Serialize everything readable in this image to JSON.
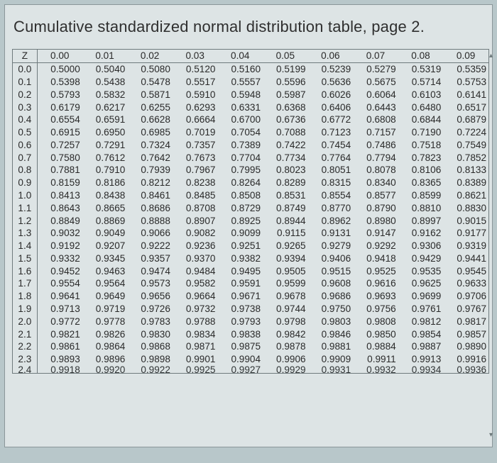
{
  "title": "Cumulative standardized normal distribution table, page 2.",
  "table": {
    "z_label": "Z",
    "col_headers": [
      "0.00",
      "0.01",
      "0.02",
      "0.03",
      "0.04",
      "0.05",
      "0.06",
      "0.07",
      "0.08",
      "0.09"
    ],
    "rows": [
      {
        "z": "0.0",
        "v": [
          "0.5000",
          "0.5040",
          "0.5080",
          "0.5120",
          "0.5160",
          "0.5199",
          "0.5239",
          "0.5279",
          "0.5319",
          "0.5359"
        ]
      },
      {
        "z": "0.1",
        "v": [
          "0.5398",
          "0.5438",
          "0.5478",
          "0.5517",
          "0.5557",
          "0.5596",
          "0.5636",
          "0.5675",
          "0.5714",
          "0.5753"
        ]
      },
      {
        "z": "0.2",
        "v": [
          "0.5793",
          "0.5832",
          "0.5871",
          "0.5910",
          "0.5948",
          "0.5987",
          "0.6026",
          "0.6064",
          "0.6103",
          "0.6141"
        ]
      },
      {
        "z": "0.3",
        "v": [
          "0.6179",
          "0.6217",
          "0.6255",
          "0.6293",
          "0.6331",
          "0.6368",
          "0.6406",
          "0.6443",
          "0.6480",
          "0.6517"
        ]
      },
      {
        "z": "0.4",
        "v": [
          "0.6554",
          "0.6591",
          "0.6628",
          "0.6664",
          "0.6700",
          "0.6736",
          "0.6772",
          "0.6808",
          "0.6844",
          "0.6879"
        ]
      },
      {
        "z": "0.5",
        "v": [
          "0.6915",
          "0.6950",
          "0.6985",
          "0.7019",
          "0.7054",
          "0.7088",
          "0.7123",
          "0.7157",
          "0.7190",
          "0.7224"
        ]
      },
      {
        "z": "0.6",
        "v": [
          "0.7257",
          "0.7291",
          "0.7324",
          "0.7357",
          "0.7389",
          "0.7422",
          "0.7454",
          "0.7486",
          "0.7518",
          "0.7549"
        ]
      },
      {
        "z": "0.7",
        "v": [
          "0.7580",
          "0.7612",
          "0.7642",
          "0.7673",
          "0.7704",
          "0.7734",
          "0.7764",
          "0.7794",
          "0.7823",
          "0.7852"
        ]
      },
      {
        "z": "0.8",
        "v": [
          "0.7881",
          "0.7910",
          "0.7939",
          "0.7967",
          "0.7995",
          "0.8023",
          "0.8051",
          "0.8078",
          "0.8106",
          "0.8133"
        ]
      },
      {
        "z": "0.9",
        "v": [
          "0.8159",
          "0.8186",
          "0.8212",
          "0.8238",
          "0.8264",
          "0.8289",
          "0.8315",
          "0.8340",
          "0.8365",
          "0.8389"
        ]
      },
      {
        "z": "1.0",
        "v": [
          "0.8413",
          "0.8438",
          "0.8461",
          "0.8485",
          "0.8508",
          "0.8531",
          "0.8554",
          "0.8577",
          "0.8599",
          "0.8621"
        ]
      },
      {
        "z": "1.1",
        "v": [
          "0.8643",
          "0.8665",
          "0.8686",
          "0.8708",
          "0.8729",
          "0.8749",
          "0.8770",
          "0.8790",
          "0.8810",
          "0.8830"
        ]
      },
      {
        "z": "1.2",
        "v": [
          "0.8849",
          "0.8869",
          "0.8888",
          "0.8907",
          "0.8925",
          "0.8944",
          "0.8962",
          "0.8980",
          "0.8997",
          "0.9015"
        ]
      },
      {
        "z": "1.3",
        "v": [
          "0.9032",
          "0.9049",
          "0.9066",
          "0.9082",
          "0.9099",
          "0.9115",
          "0.9131",
          "0.9147",
          "0.9162",
          "0.9177"
        ]
      },
      {
        "z": "1.4",
        "v": [
          "0.9192",
          "0.9207",
          "0.9222",
          "0.9236",
          "0.9251",
          "0.9265",
          "0.9279",
          "0.9292",
          "0.9306",
          "0.9319"
        ]
      },
      {
        "z": "1.5",
        "v": [
          "0.9332",
          "0.9345",
          "0.9357",
          "0.9370",
          "0.9382",
          "0.9394",
          "0.9406",
          "0.9418",
          "0.9429",
          "0.9441"
        ]
      },
      {
        "z": "1.6",
        "v": [
          "0.9452",
          "0.9463",
          "0.9474",
          "0.9484",
          "0.9495",
          "0.9505",
          "0.9515",
          "0.9525",
          "0.9535",
          "0.9545"
        ]
      },
      {
        "z": "1.7",
        "v": [
          "0.9554",
          "0.9564",
          "0.9573",
          "0.9582",
          "0.9591",
          "0.9599",
          "0.9608",
          "0.9616",
          "0.9625",
          "0.9633"
        ]
      },
      {
        "z": "1.8",
        "v": [
          "0.9641",
          "0.9649",
          "0.9656",
          "0.9664",
          "0.9671",
          "0.9678",
          "0.9686",
          "0.9693",
          "0.9699",
          "0.9706"
        ]
      },
      {
        "z": "1.9",
        "v": [
          "0.9713",
          "0.9719",
          "0.9726",
          "0.9732",
          "0.9738",
          "0.9744",
          "0.9750",
          "0.9756",
          "0.9761",
          "0.9767"
        ]
      },
      {
        "z": "2.0",
        "v": [
          "0.9772",
          "0.9778",
          "0.9783",
          "0.9788",
          "0.9793",
          "0.9798",
          "0.9803",
          "0.9808",
          "0.9812",
          "0.9817"
        ]
      },
      {
        "z": "2.1",
        "v": [
          "0.9821",
          "0.9826",
          "0.9830",
          "0.9834",
          "0.9838",
          "0.9842",
          "0.9846",
          "0.9850",
          "0.9854",
          "0.9857"
        ]
      },
      {
        "z": "2.2",
        "v": [
          "0.9861",
          "0.9864",
          "0.9868",
          "0.9871",
          "0.9875",
          "0.9878",
          "0.9881",
          "0.9884",
          "0.9887",
          "0.9890"
        ]
      },
      {
        "z": "2.3",
        "v": [
          "0.9893",
          "0.9896",
          "0.9898",
          "0.9901",
          "0.9904",
          "0.9906",
          "0.9909",
          "0.9911",
          "0.9913",
          "0.9916"
        ]
      },
      {
        "z": "2.4",
        "v": [
          "0.9918",
          "0.9920",
          "0.9922",
          "0.9925",
          "0.9927",
          "0.9929",
          "0.9931",
          "0.9932",
          "0.9934",
          "0.9936"
        ],
        "cut": true
      }
    ]
  },
  "styles": {
    "page_bg": "#b8c7ca",
    "sheet_bg": "#dde4e5",
    "border_color": "#6f7a7d",
    "text_color": "#2a2a2a",
    "title_fontsize": 22,
    "cell_fontsize": 13.6
  }
}
